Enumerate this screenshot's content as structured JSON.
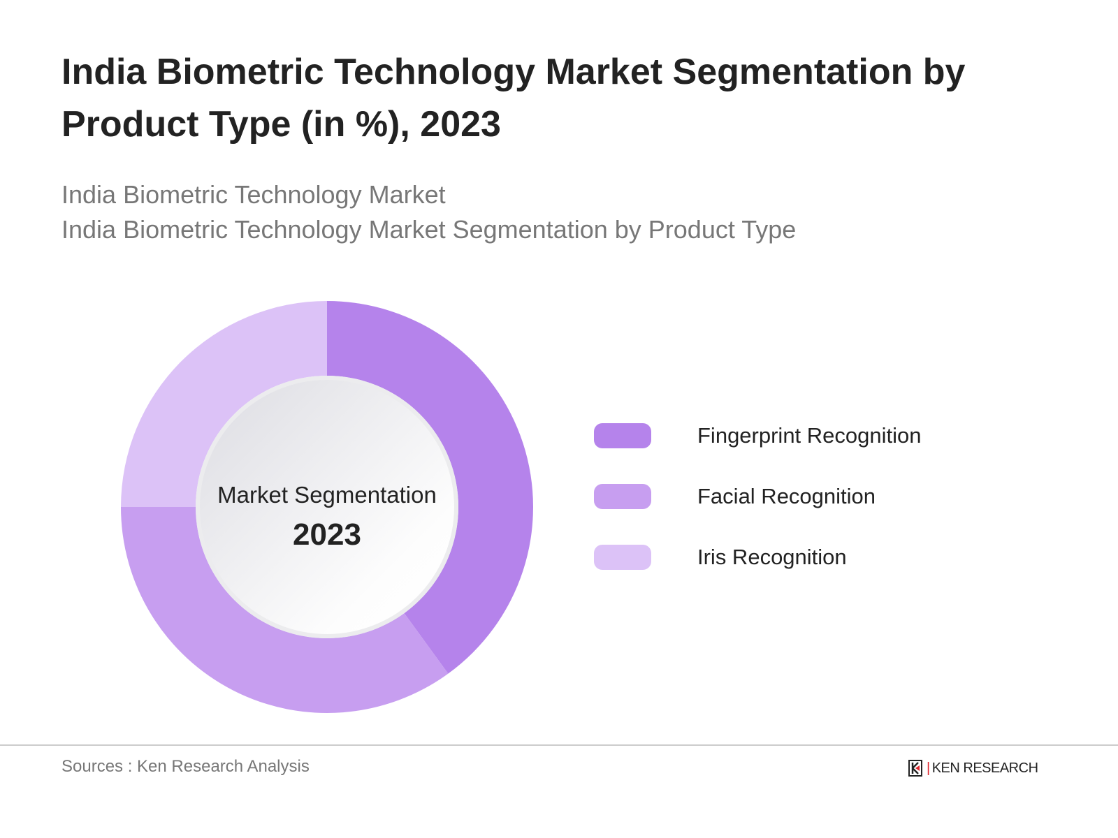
{
  "title": "India Biometric Technology Market Segmentation by Product Type (in %), 2023",
  "subtitle_1": "India Biometric Technology Market",
  "subtitle_2": "India Biometric Technology Market Segmentation by Product Type",
  "chart_data": {
    "type": "pie",
    "variant": "donut",
    "title": "India Biometric Technology Market Segmentation by Product Type (in %), 2023",
    "center_label": "Market Segmentation",
    "center_year": "2023",
    "legend_position": "right",
    "categories": [
      "Fingerprint Recognition",
      "Facial Recognition",
      "Iris Recognition"
    ],
    "values": [
      40,
      35,
      25
    ],
    "colors": [
      "#b583eb",
      "#c79ef0",
      "#dcc2f7"
    ]
  },
  "footer": {
    "source": "Sources : Ken Research Analysis",
    "logo_text": "KEN RESEARCH"
  }
}
